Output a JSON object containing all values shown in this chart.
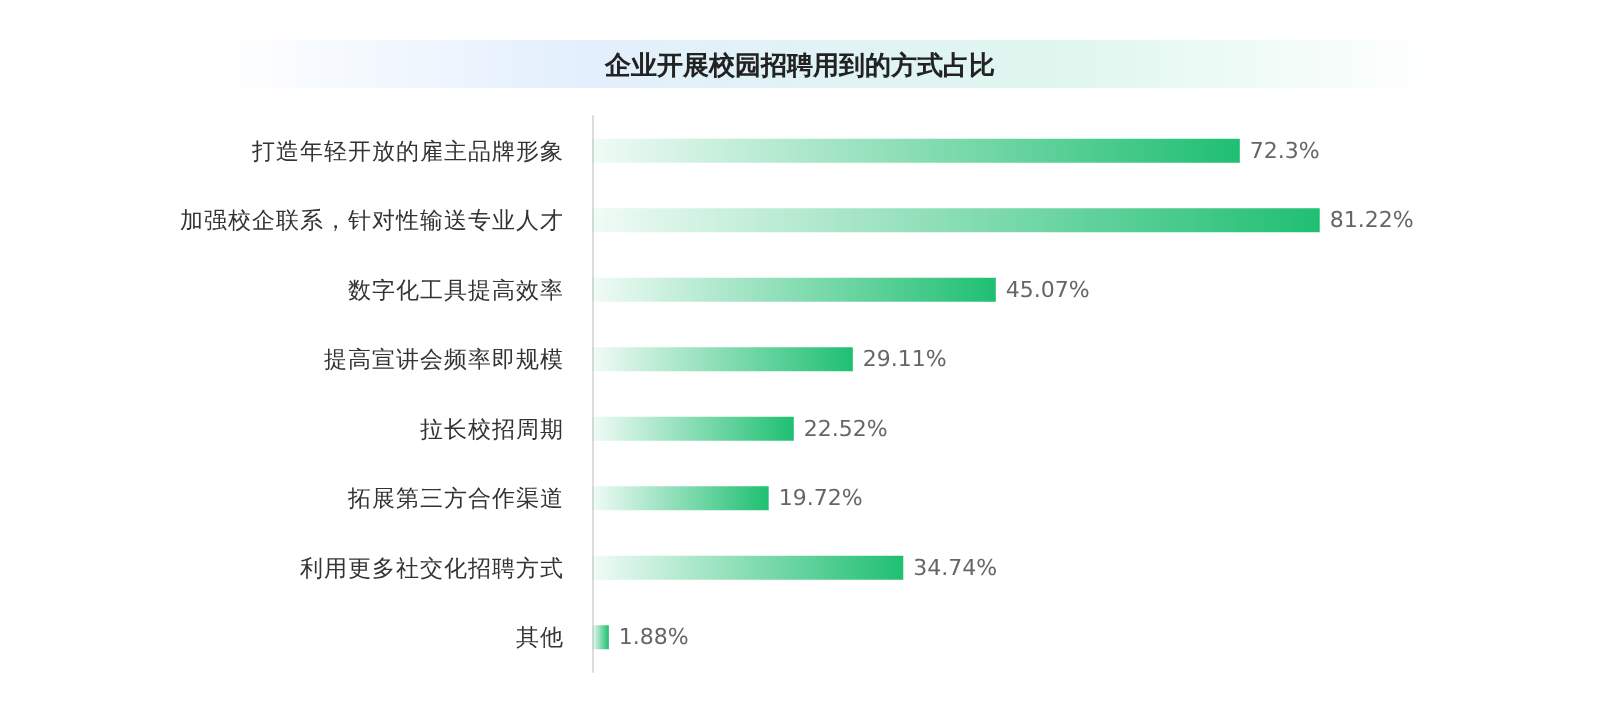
{
  "chart_data": {
    "type": "bar",
    "orientation": "horizontal",
    "title": "企业开展校园招聘用到的方式占比",
    "categories": [
      "打造年轻开放的雇主品牌形象",
      "加强校企联系，针对性输送专业人才",
      "数字化工具提高效率",
      "提高宣讲会频率即规模",
      "拉长校招周期",
      "拓展第三方合作渠道",
      "利用更多社交化招聘方式",
      "其他"
    ],
    "values": [
      72.3,
      81.22,
      45.07,
      29.11,
      22.52,
      19.72,
      34.74,
      1.88
    ],
    "value_labels": [
      "72.3%",
      "81.22%",
      "45.07%",
      "29.11%",
      "22.52%",
      "19.72%",
      "34.74%",
      "1.88%"
    ],
    "color": "#1fbf72"
  }
}
